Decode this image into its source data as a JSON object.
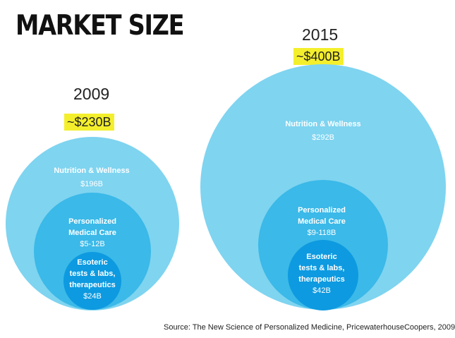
{
  "title": "MARKET SIZE",
  "markets": [
    {
      "year": "2009",
      "total": "~$230B",
      "segments": [
        {
          "name": "Nutrition & Wellness",
          "value": "$196B"
        },
        {
          "name_lines": [
            "Personalized",
            "Medical Care"
          ],
          "value": "$5-12B"
        },
        {
          "name_lines": [
            "Esoteric",
            "tests & labs,",
            "therapeutics"
          ],
          "value": "$24B"
        }
      ]
    },
    {
      "year": "2015",
      "total": "~$400B",
      "segments": [
        {
          "name": "Nutrition & Wellness",
          "value": "$292B"
        },
        {
          "name_lines": [
            "Personalized",
            "Medical Care"
          ],
          "value": "$9-118B"
        },
        {
          "name_lines": [
            "Esoteric",
            "tests & labs,",
            "therapeutics"
          ],
          "value": "$42B"
        }
      ]
    }
  ],
  "source": "Source: The New Science of Personalized Medicine, PricewaterhouseCoopers, 2009",
  "colors": {
    "outer": "#7fd4f0",
    "middle": "#3bb9e8",
    "inner": "#0d9ae0",
    "highlight": "#f4ef2c"
  }
}
